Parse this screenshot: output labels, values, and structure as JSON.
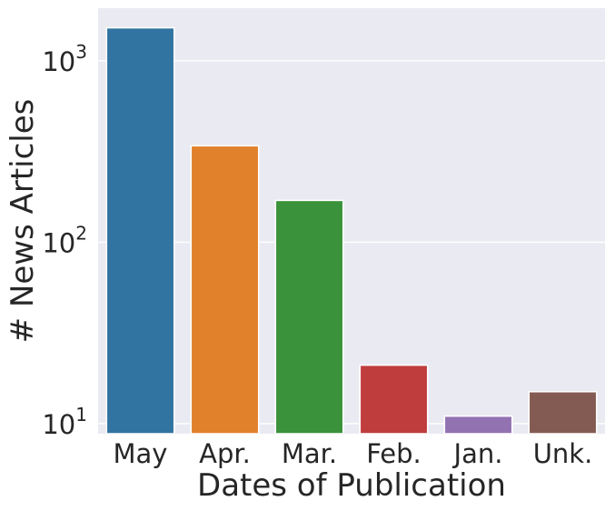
{
  "chart_data": {
    "type": "bar",
    "categories": [
      "May",
      "Apr.",
      "Mar.",
      "Feb.",
      "Jan.",
      "Unk."
    ],
    "values": [
      1520,
      340,
      170,
      21,
      11,
      15
    ],
    "colors": [
      "#3274a1",
      "#e1812c",
      "#3a923a",
      "#c03d3e",
      "#9372b2",
      "#845b53"
    ],
    "xlabel": "Dates of Publication",
    "ylabel": "# News Articles",
    "yscale": "log",
    "ylim": [
      8.8,
      1950
    ],
    "yticks": [
      {
        "value": 10,
        "base": "10",
        "exponent": "1"
      },
      {
        "value": 100,
        "base": "10",
        "exponent": "2"
      },
      {
        "value": 1000,
        "base": "10",
        "exponent": "3"
      }
    ],
    "grid": true,
    "background": "#eaeaf2"
  }
}
